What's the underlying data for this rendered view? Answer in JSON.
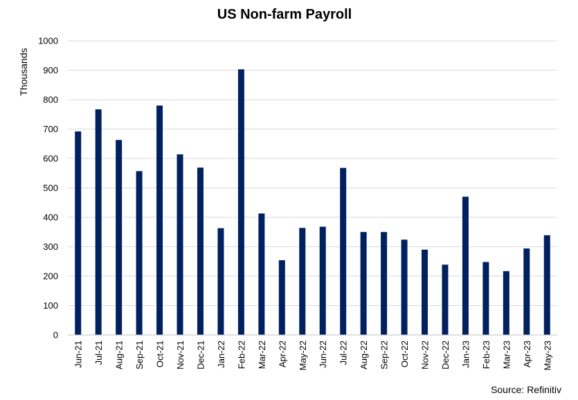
{
  "chart_data": {
    "type": "bar",
    "title": "US Non-farm Payroll",
    "ylabel": "Thousands",
    "xlabel": "",
    "ylim": [
      0,
      1000
    ],
    "yticks": [
      0,
      100,
      200,
      300,
      400,
      500,
      600,
      700,
      800,
      900,
      1000
    ],
    "grid": true,
    "bar_color": "#002060",
    "categories": [
      "Jun-21",
      "Jul-21",
      "Aug-21",
      "Sep-21",
      "Oct-21",
      "Nov-21",
      "Dec-21",
      "Jan-22",
      "Feb-22",
      "Mar-22",
      "Apr-22",
      "May-22",
      "Jun-22",
      "Jul-22",
      "Aug-22",
      "Sep-22",
      "Oct-22",
      "Nov-22",
      "Dec-22",
      "Jan-23",
      "Feb-23",
      "Mar-23",
      "Apr-23",
      "May-23"
    ],
    "values": [
      692,
      767,
      663,
      557,
      780,
      614,
      569,
      363,
      903,
      413,
      254,
      364,
      368,
      568,
      350,
      350,
      324,
      290,
      239,
      470,
      248,
      217,
      294,
      339
    ]
  },
  "source": "Source: Refinitiv"
}
